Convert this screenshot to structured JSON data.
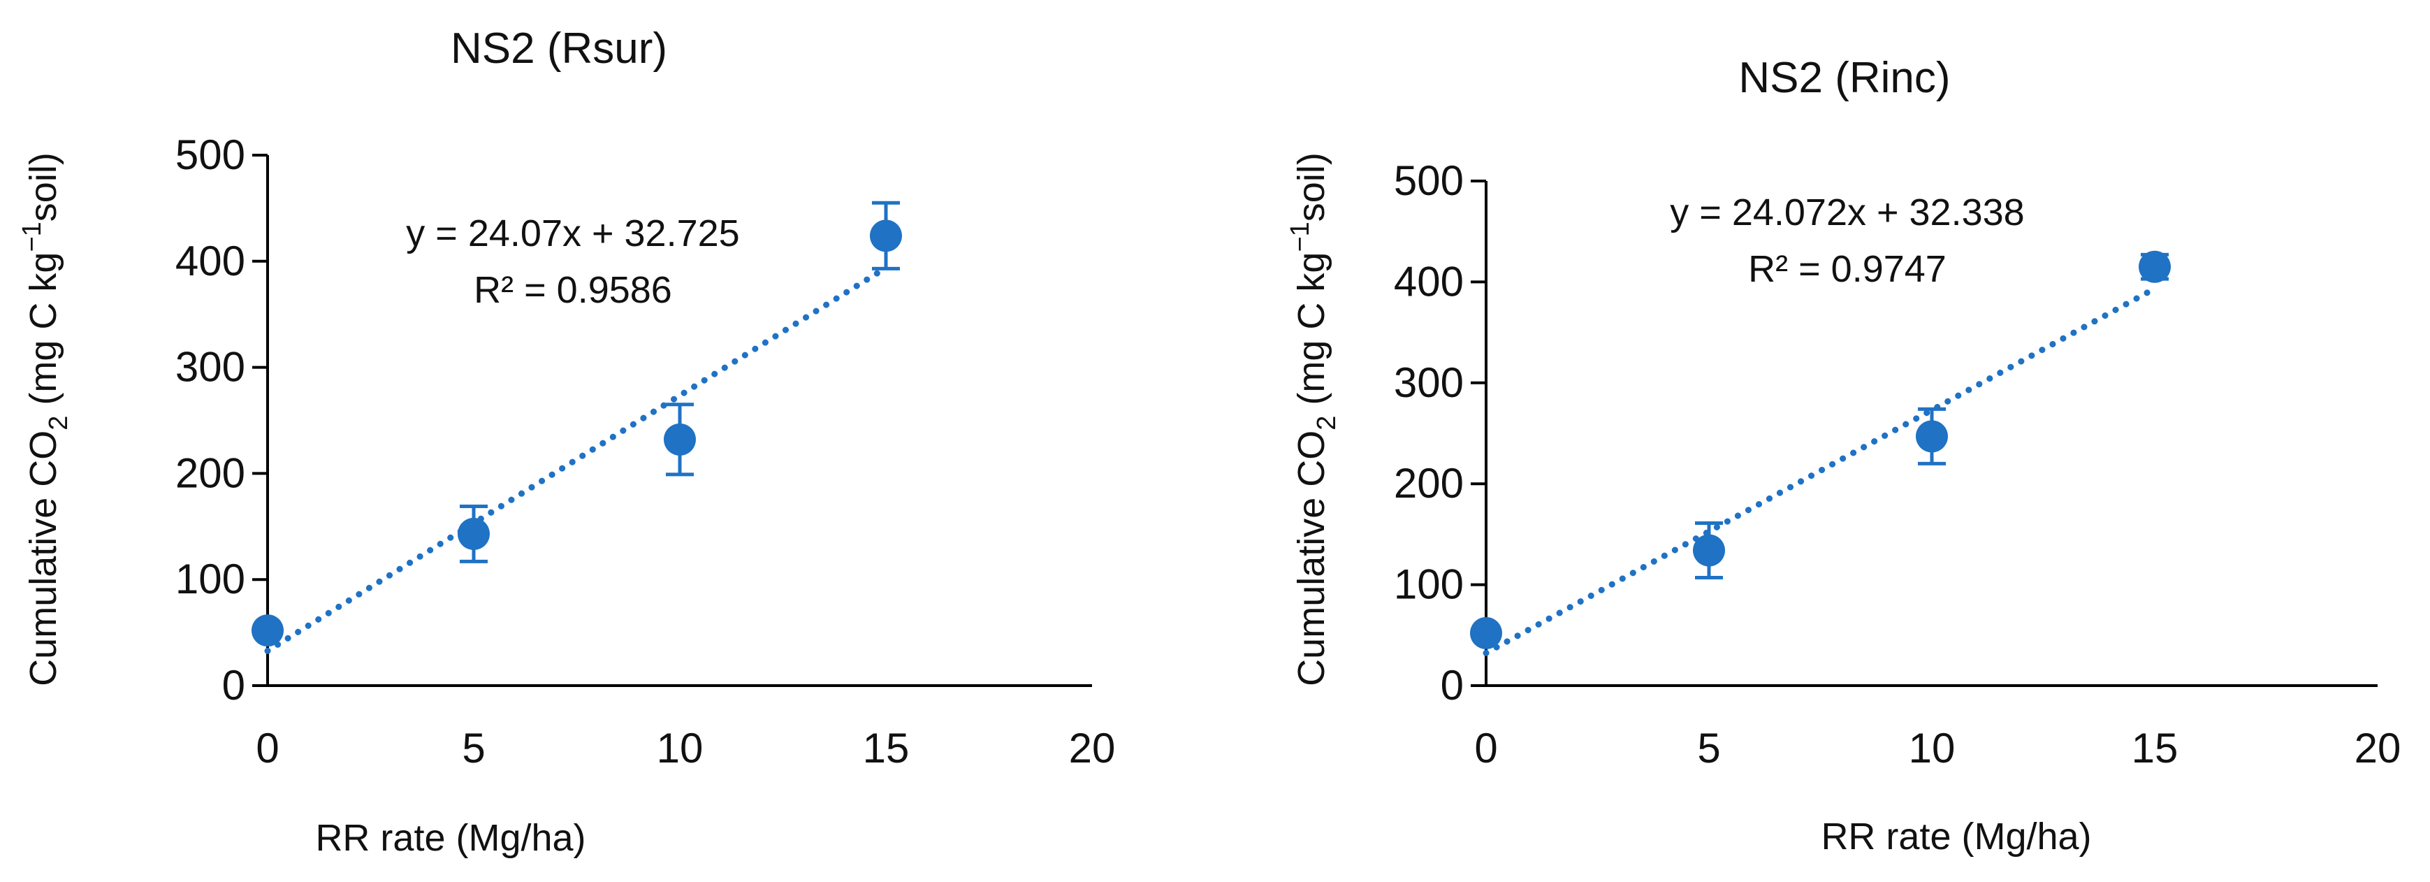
{
  "chart_data": [
    {
      "type": "scatter",
      "title": "NS2 (Rsur)",
      "xlabel": "RR rate (Mg/ha)",
      "ylabel": {
        "text": "Cumulative CO",
        "sub": "2",
        "text2": " (mg C kg",
        "sup": "−1",
        "text3": "soil)"
      },
      "x_ticks": [
        "0",
        "5",
        "10",
        "15",
        "20"
      ],
      "y_ticks": [
        "0",
        "100",
        "200",
        "300",
        "400",
        "500"
      ],
      "xlim": [
        0,
        20
      ],
      "ylim": [
        0,
        500
      ],
      "x": [
        0,
        5,
        10,
        15
      ],
      "y": [
        52,
        143,
        232,
        424
      ],
      "error": [
        0,
        26,
        33,
        31
      ],
      "trendline": {
        "type": "linear",
        "slope": 24.07,
        "intercept": 32.725,
        "x_range": [
          0,
          15
        ],
        "style": "dotted",
        "equation": "y = 24.07x + 32.725",
        "r2": "R² = 0.9586"
      },
      "grid": false,
      "legend": "none",
      "color": "#1f72c4"
    },
    {
      "type": "scatter",
      "title": "NS2 (Rinc)",
      "xlabel": "RR rate (Mg/ha)",
      "ylabel": {
        "text": "Cumulative CO",
        "sub": "2",
        "text2": " (mg C kg",
        "sup": "−1",
        "text3": "soil)"
      },
      "x_ticks": [
        "0",
        "5",
        "10",
        "15",
        "20"
      ],
      "y_ticks": [
        "0",
        "100",
        "200",
        "300",
        "400",
        "500"
      ],
      "xlim": [
        0,
        20
      ],
      "ylim": [
        0,
        500
      ],
      "x": [
        0,
        5,
        10,
        15
      ],
      "y": [
        52,
        134,
        247,
        415
      ],
      "error": [
        0,
        27,
        27,
        12
      ],
      "trendline": {
        "type": "linear",
        "slope": 24.072,
        "intercept": 32.338,
        "x_range": [
          0,
          15
        ],
        "style": "dotted",
        "equation": "y = 24.072x + 32.338",
        "r2": "R² = 0.9747"
      },
      "grid": false,
      "legend": "none",
      "color": "#1f72c4"
    }
  ]
}
